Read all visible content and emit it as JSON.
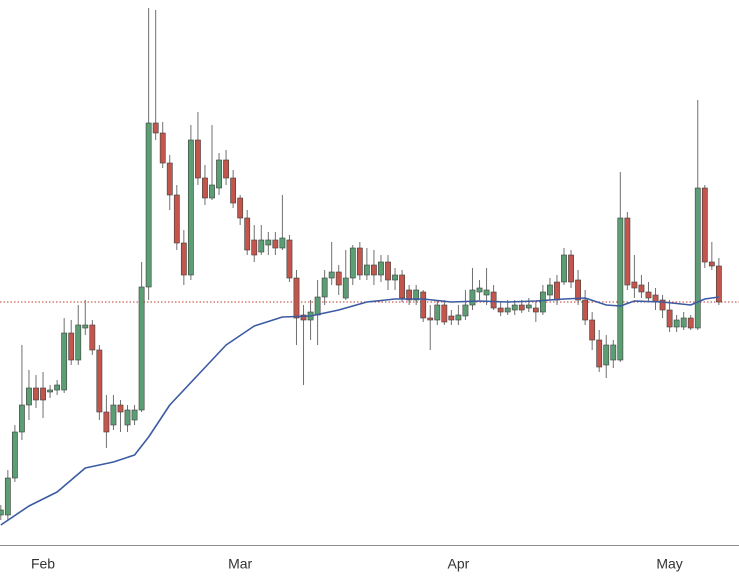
{
  "chart_data": {
    "type": "candlestick",
    "categories": [
      null,
      null,
      null,
      null,
      null,
      null,
      "Feb",
      null,
      null,
      null,
      null,
      null,
      null,
      null,
      null,
      null,
      null,
      null,
      null,
      null,
      null,
      null,
      null,
      null,
      null,
      null,
      null,
      null,
      null,
      null,
      null,
      null,
      null,
      null,
      "Mar",
      null,
      null,
      null,
      null,
      null,
      null,
      null,
      null,
      null,
      null,
      null,
      null,
      null,
      null,
      null,
      null,
      null,
      null,
      null,
      null,
      null,
      null,
      null,
      null,
      null,
      null,
      null,
      null,
      null,
      null,
      "Apr",
      null,
      null,
      null,
      null,
      null,
      null,
      null,
      null,
      null,
      null,
      null,
      null,
      null,
      null,
      null,
      null,
      null,
      null,
      null,
      null,
      null,
      null,
      null,
      null,
      null,
      null,
      null,
      null,
      null,
      "May",
      null,
      null,
      null,
      null,
      null,
      null,
      null
    ],
    "open": [
      30,
      30,
      67,
      113,
      140,
      157,
      157,
      153,
      155,
      155,
      212,
      185,
      217,
      220,
      195,
      133,
      120,
      140,
      120,
      125,
      135,
      258,
      422,
      412,
      382,
      350,
      302,
      270,
      405,
      367,
      347,
      357,
      385,
      367,
      347,
      327,
      305,
      293,
      300,
      305,
      297,
      305,
      267,
      230,
      225,
      230,
      248,
      267,
      273,
      247,
      267,
      297,
      270,
      280,
      270,
      283,
      265,
      270,
      255,
      245,
      253,
      227,
      225,
      240,
      229,
      225,
      229,
      240,
      253,
      250,
      253,
      237,
      233,
      235,
      240,
      237,
      237,
      233,
      250,
      263,
      263,
      290,
      265,
      245,
      225,
      205,
      180,
      185,
      185,
      327,
      263,
      260,
      253,
      250,
      245,
      235,
      218,
      218,
      227,
      217,
      357,
      283,
      279
    ],
    "high": [
      40,
      75,
      120,
      200,
      175,
      170,
      173,
      160,
      165,
      227,
      225,
      240,
      245,
      225,
      200,
      150,
      150,
      145,
      140,
      140,
      283,
      537,
      535,
      423,
      390,
      360,
      315,
      420,
      433,
      380,
      420,
      392,
      395,
      375,
      350,
      335,
      320,
      320,
      313,
      313,
      350,
      310,
      275,
      240,
      245,
      265,
      275,
      303,
      280,
      295,
      300,
      303,
      297,
      295,
      290,
      290,
      277,
      275,
      260,
      260,
      255,
      240,
      245,
      245,
      235,
      240,
      255,
      277,
      265,
      277,
      260,
      243,
      245,
      245,
      245,
      247,
      243,
      260,
      267,
      270,
      297,
      295,
      275,
      255,
      233,
      215,
      210,
      205,
      373,
      333,
      290,
      270,
      263,
      257,
      250,
      245,
      230,
      233,
      230,
      445,
      360,
      303,
      287
    ],
    "low": [
      25,
      25,
      63,
      105,
      125,
      137,
      127,
      147,
      150,
      152,
      180,
      180,
      210,
      190,
      125,
      97,
      115,
      113,
      113,
      120,
      133,
      245,
      405,
      377,
      335,
      295,
      260,
      265,
      360,
      340,
      345,
      350,
      360,
      337,
      320,
      290,
      283,
      290,
      290,
      290,
      295,
      263,
      200,
      160,
      205,
      200,
      240,
      260,
      250,
      245,
      260,
      265,
      265,
      260,
      263,
      255,
      255,
      243,
      240,
      240,
      223,
      195,
      220,
      220,
      220,
      220,
      225,
      235,
      245,
      240,
      235,
      229,
      230,
      230,
      232,
      233,
      223,
      230,
      245,
      240,
      260,
      257,
      240,
      220,
      195,
      173,
      167,
      177,
      183,
      255,
      247,
      247,
      243,
      235,
      227,
      213,
      213,
      215,
      215,
      215,
      277,
      275,
      240
    ],
    "close": [
      35,
      67,
      113,
      140,
      157,
      145,
      145,
      155,
      160,
      212,
      185,
      220,
      220,
      195,
      133,
      113,
      140,
      133,
      135,
      135,
      258,
      422,
      412,
      382,
      350,
      302,
      270,
      405,
      367,
      347,
      360,
      385,
      367,
      342,
      327,
      295,
      290,
      305,
      305,
      297,
      307,
      267,
      227,
      225,
      233,
      248,
      267,
      273,
      260,
      267,
      297,
      270,
      280,
      270,
      283,
      265,
      270,
      247,
      245,
      255,
      227,
      225,
      240,
      223,
      225,
      230,
      240,
      255,
      257,
      255,
      237,
      233,
      237,
      240,
      235,
      240,
      233,
      253,
      260,
      245,
      290,
      263,
      245,
      225,
      205,
      178,
      200,
      200,
      327,
      260,
      257,
      253,
      247,
      243,
      235,
      218,
      225,
      227,
      217,
      357,
      283,
      279,
      243
    ],
    "up_color": "#5b9e74",
    "down_color": "#c2564c",
    "wick_color": "#6f6f6f",
    "ma": {
      "color": "#3c5ba3",
      "x": [
        0,
        4,
        8,
        12,
        16,
        19,
        21,
        24,
        28,
        32,
        36,
        40,
        44,
        48,
        52,
        56,
        60,
        64,
        68,
        72,
        76,
        80,
        83,
        86,
        88,
        90,
        94,
        98,
        100,
        102
      ],
      "values": [
        20,
        39,
        53,
        77,
        83,
        90,
        108,
        140,
        170,
        200,
        219,
        228,
        229,
        235,
        243,
        246,
        246,
        243,
        244,
        243,
        244,
        246,
        247,
        240,
        239,
        244,
        243,
        240,
        246,
        248
      ]
    },
    "last_price_line": true,
    "last_price_color": "#c0392b",
    "ylim": [
      0,
      545
    ]
  }
}
